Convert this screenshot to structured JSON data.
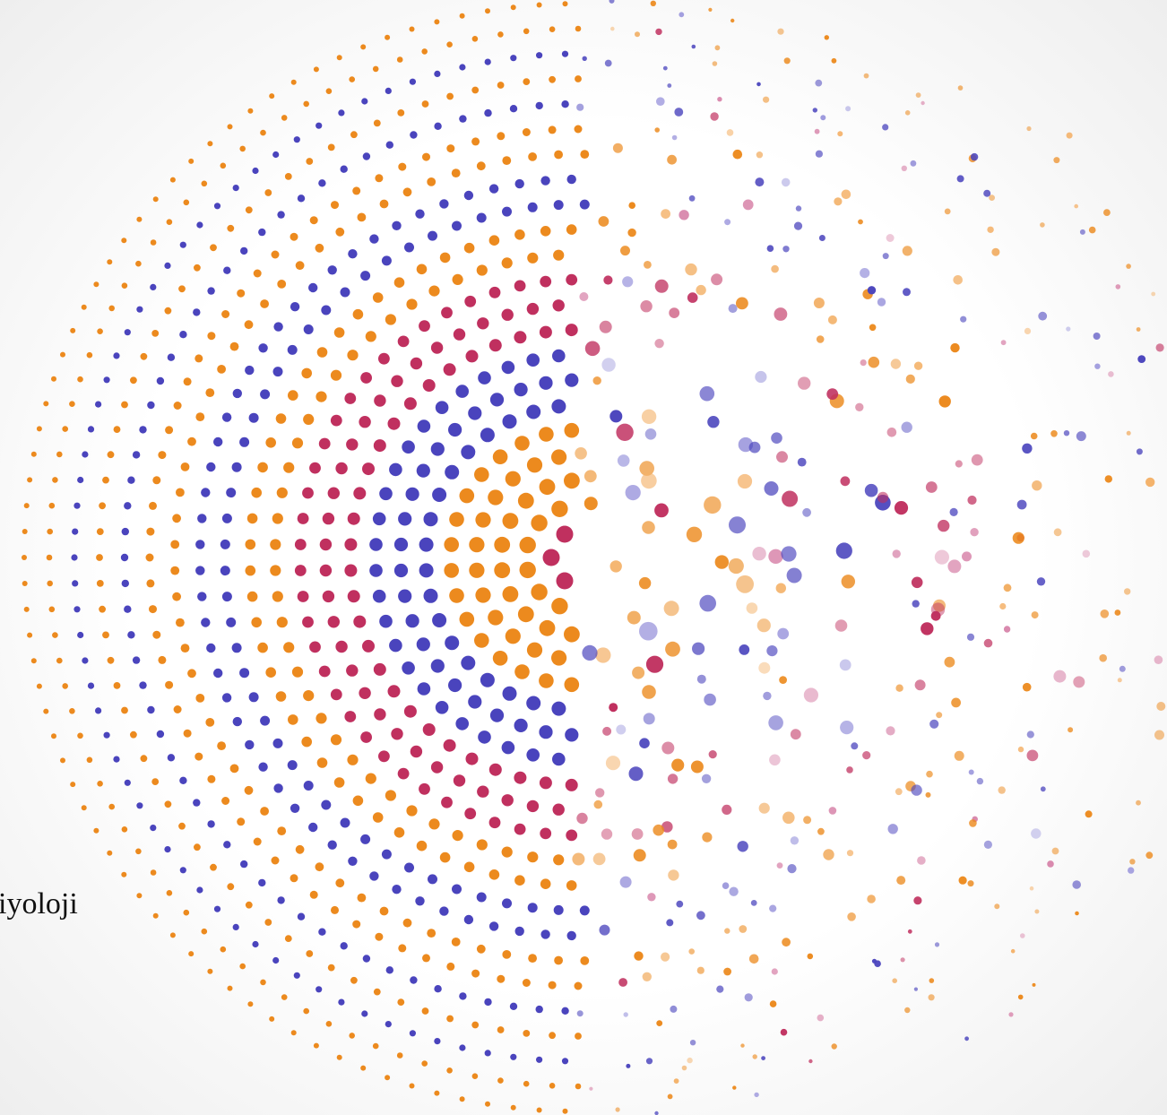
{
  "text": "iyoloji"
}
